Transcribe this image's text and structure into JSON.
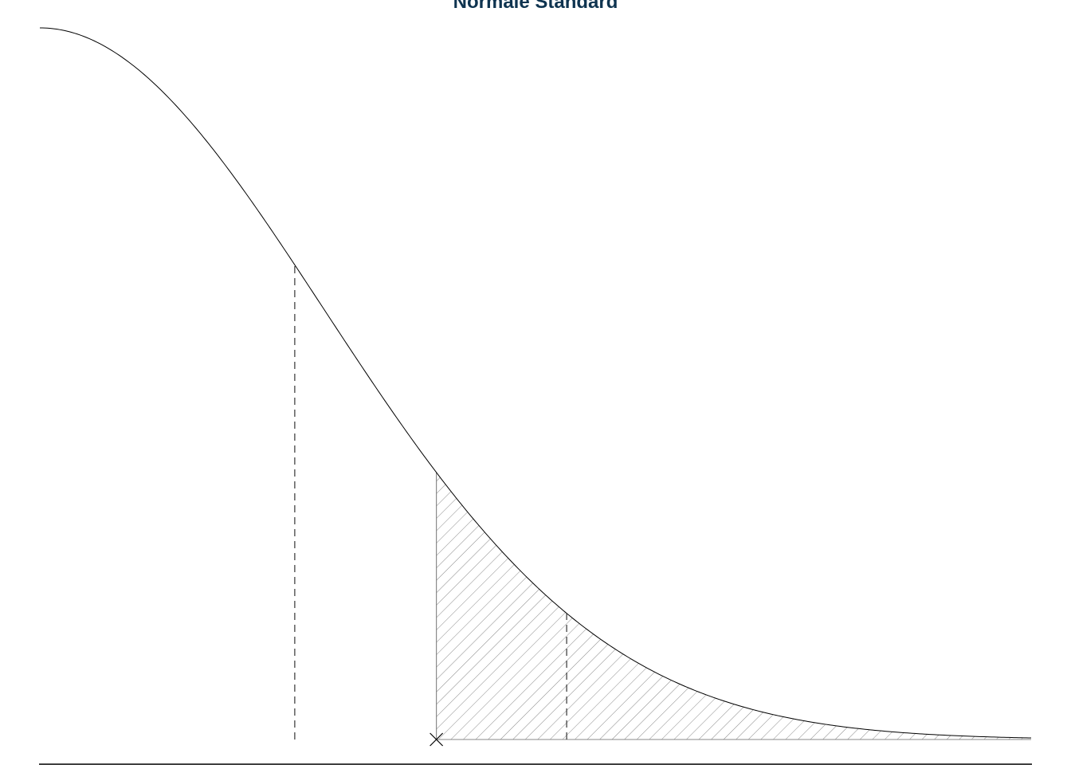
{
  "chart_data": {
    "type": "area",
    "title": "Normale Standard",
    "xlabel": "",
    "ylabel": "",
    "distribution": "standard normal density",
    "xlim": [
      0.0,
      3.5
    ],
    "ylim": [
      0.0,
      0.4
    ],
    "shaded_region": {
      "from": 1.4,
      "to": 3.5,
      "fill": "diagonal hatch",
      "color": "#8a8a8a"
    },
    "reference_lines": [
      {
        "x": 0.9,
        "style": "dashed"
      },
      {
        "x": 1.86,
        "style": "dashed"
      }
    ],
    "marker": {
      "x": 1.4,
      "symbol": "x"
    },
    "grid": false,
    "legend": "none"
  },
  "colors": {
    "title": "#0f3450",
    "curve": "#000000",
    "hatch": "#8a8a8a",
    "axis": "#000000"
  }
}
